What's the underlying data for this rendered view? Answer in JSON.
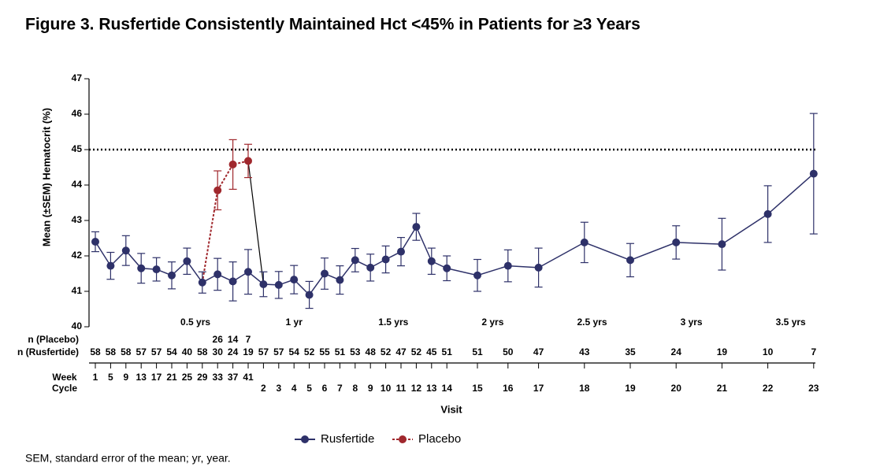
{
  "chart_data": {
    "type": "line",
    "title": "Figure 3. Rusfertide Consistently Maintained Hct <45% in Patients for ≥3 Years",
    "y_label": "Mean (±SEM) Hematocrit (%)",
    "x_label": "Visit",
    "ylim": [
      40,
      47
    ],
    "yticks": [
      40,
      41,
      42,
      43,
      44,
      45,
      46,
      47
    ],
    "ref_line": 45,
    "week_row_label": "Week",
    "cycle_row_label": "Cycle",
    "weeks": [
      1,
      5,
      9,
      13,
      17,
      21,
      25,
      29,
      33,
      37,
      41
    ],
    "cycles": [
      2,
      3,
      4,
      5,
      6,
      7,
      8,
      9,
      10,
      11,
      12,
      13,
      14,
      15,
      16,
      17,
      18,
      19,
      20,
      21,
      22,
      23
    ],
    "annotations": [
      "0.5 yrs",
      "1 yr",
      "1.5 yrs",
      "2 yrs",
      "2.5 yrs",
      "3 yrs",
      "3.5 yrs"
    ],
    "n_rows": [
      {
        "label": "n (Placebo)",
        "color": "#a0282d",
        "values": [
          null,
          null,
          null,
          null,
          null,
          null,
          null,
          null,
          26,
          14,
          7,
          null,
          null,
          null,
          null,
          null,
          null,
          null,
          null,
          null,
          null,
          null,
          null,
          null,
          null,
          null,
          null,
          null,
          null,
          null,
          null,
          null,
          null
        ]
      },
      {
        "label": "n (Rusfertide)",
        "color": "#2e3169",
        "values": [
          58,
          58,
          58,
          57,
          57,
          54,
          40,
          58,
          30,
          24,
          19,
          57,
          57,
          54,
          52,
          55,
          51,
          53,
          48,
          52,
          47,
          52,
          45,
          51,
          51,
          50,
          47,
          43,
          35,
          24,
          19,
          10,
          7
        ]
      }
    ],
    "series": [
      {
        "name": "Rusfertide",
        "color": "#2e3169",
        "values": [
          42.4,
          41.72,
          42.15,
          41.65,
          41.62,
          41.45,
          41.85,
          41.25,
          41.48,
          41.28,
          41.55,
          41.2,
          41.18,
          41.33,
          40.9,
          41.5,
          41.32,
          41.88,
          41.67,
          41.9,
          42.12,
          42.82,
          41.85,
          41.65,
          41.45,
          41.72,
          41.67,
          42.38,
          41.88,
          42.38,
          42.33,
          43.18,
          44.32
        ],
        "errors": [
          0.28,
          0.38,
          0.42,
          0.42,
          0.33,
          0.38,
          0.37,
          0.3,
          0.45,
          0.55,
          0.63,
          0.35,
          0.38,
          0.4,
          0.38,
          0.44,
          0.4,
          0.33,
          0.38,
          0.38,
          0.4,
          0.38,
          0.37,
          0.35,
          0.45,
          0.45,
          0.55,
          0.57,
          0.47,
          0.47,
          0.73,
          0.8,
          1.7
        ]
      },
      {
        "name": "Placebo",
        "color": "#a0282d",
        "values": [
          null,
          null,
          null,
          null,
          null,
          null,
          null,
          null,
          43.85,
          44.58,
          44.68,
          null,
          null,
          null,
          null,
          null,
          null,
          null,
          null,
          null,
          null,
          null,
          null,
          null,
          null,
          null,
          null,
          null,
          null,
          null,
          null,
          null,
          null
        ],
        "errors": [
          null,
          null,
          null,
          null,
          null,
          null,
          null,
          null,
          0.55,
          0.7,
          0.47,
          null,
          null,
          null,
          null,
          null,
          null,
          null,
          null,
          null,
          null,
          null,
          null,
          null,
          null,
          null,
          null,
          null,
          null,
          null,
          null,
          null,
          null
        ]
      }
    ],
    "footnote": "SEM, standard error of the mean; yr, year."
  }
}
